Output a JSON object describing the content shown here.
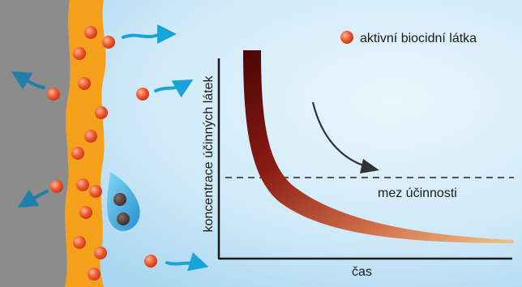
{
  "legend": {
    "label": "aktivní biocidní látka"
  },
  "chart": {
    "ylabel": "koncentrace účinných látek",
    "xlabel": "čas",
    "threshold_label": "mez účinnosti"
  },
  "colors": {
    "background": "#cfe9f8",
    "wall": "#8c8c8c",
    "coating": "#f5a01a",
    "particle": "#e8552c",
    "arrow": "#1aa3d8",
    "arrow_dark": "#1f7fa8",
    "droplet": "#3bb0e6",
    "curve_start": "#5a0a0a",
    "curve_end": "#f0b07a"
  }
}
